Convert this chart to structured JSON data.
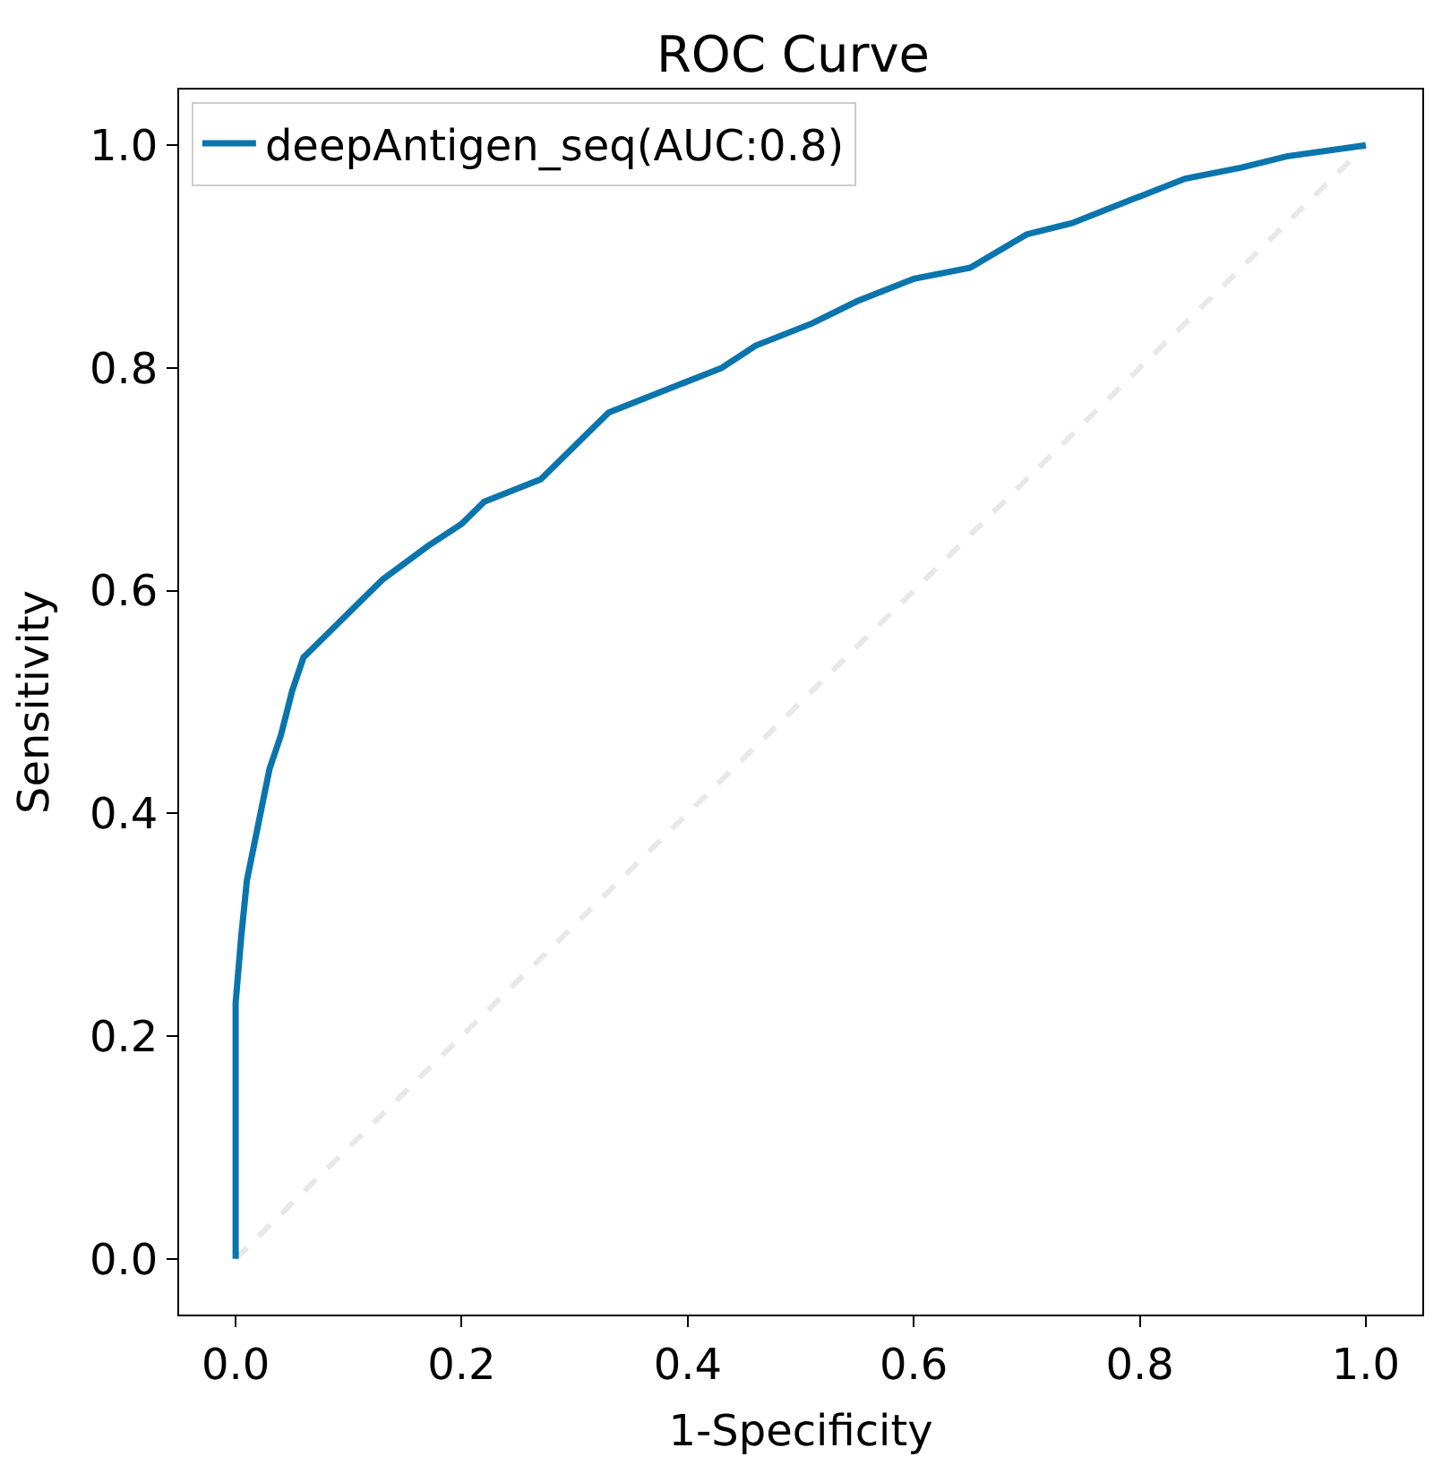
{
  "chart_data": {
    "type": "line",
    "title": "ROC Curve",
    "xlabel": "1-Specificity",
    "ylabel": "Sensitivity",
    "xlim": [
      -0.05,
      1.05
    ],
    "ylim": [
      -0.05,
      1.05
    ],
    "xticks": [
      {
        "value": 0,
        "label": "0.0"
      },
      {
        "value": 0.2,
        "label": "0.2"
      },
      {
        "value": 0.4,
        "label": "0.4"
      },
      {
        "value": 0.6,
        "label": "0.6"
      },
      {
        "value": 0.8,
        "label": "0.8"
      },
      {
        "value": 1,
        "label": "1.0"
      }
    ],
    "yticks": [
      {
        "value": 0,
        "label": "0.0"
      },
      {
        "value": 0.2,
        "label": "0.2"
      },
      {
        "value": 0.4,
        "label": "0.4"
      },
      {
        "value": 0.6,
        "label": "0.6"
      },
      {
        "value": 0.8,
        "label": "0.8"
      },
      {
        "value": 1,
        "label": "1.0"
      }
    ],
    "legend": "top left",
    "marker": "none",
    "series": [
      {
        "name": "deepAntigen_seq(AUC:0.8)",
        "color": "#0a75ad",
        "line_style": "solid",
        "x": [
          0,
          0,
          0.005,
          0.01,
          0.02,
          0.03,
          0.04,
          0.05,
          0.06,
          0.08,
          0.11,
          0.13,
          0.17,
          0.2,
          0.22,
          0.27,
          0.3,
          0.33,
          0.38,
          0.43,
          0.46,
          0.51,
          0.55,
          0.6,
          0.65,
          0.7,
          0.74,
          0.79,
          0.84,
          0.89,
          0.93,
          1
        ],
        "values": [
          0,
          0.23,
          0.29,
          0.34,
          0.39,
          0.44,
          0.47,
          0.51,
          0.54,
          0.56,
          0.59,
          0.61,
          0.64,
          0.66,
          0.68,
          0.7,
          0.73,
          0.76,
          0.78,
          0.8,
          0.82,
          0.84,
          0.86,
          0.88,
          0.89,
          0.92,
          0.93,
          0.95,
          0.97,
          0.98,
          0.99,
          1
        ]
      },
      {
        "color": "#e8e8e8",
        "line_style": "dashed",
        "x": [
          0,
          1
        ],
        "values": [
          0,
          1
        ]
      }
    ]
  }
}
